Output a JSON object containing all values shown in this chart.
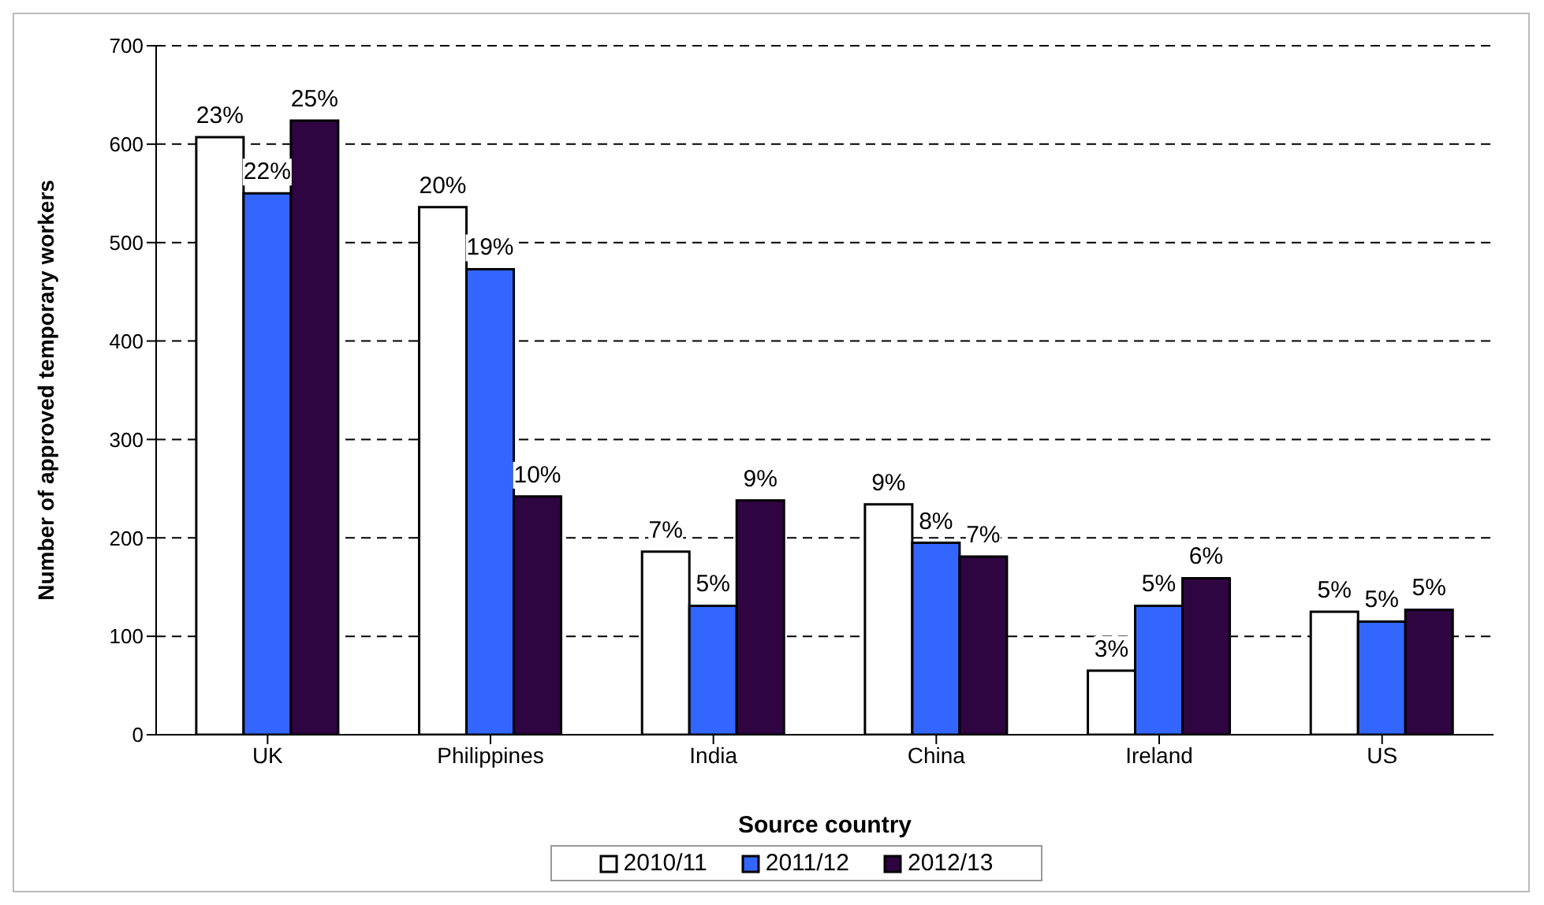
{
  "chart_data": {
    "type": "bar",
    "xlabel": "Source country",
    "ylabel": "Number of approved temporary workers",
    "categories": [
      "UK",
      "Philippines",
      "India",
      "China",
      "Ireland",
      "US"
    ],
    "series": [
      {
        "name": "2010/11",
        "color": "#ffffff",
        "values": [
          607,
          536,
          186,
          234,
          65,
          125
        ]
      },
      {
        "name": "2011/12",
        "color": "#3366ff",
        "values": [
          550,
          473,
          131,
          195,
          131,
          115
        ]
      },
      {
        "name": "2012/13",
        "color": "#2e0540",
        "values": [
          624,
          242,
          238,
          181,
          159,
          127
        ]
      }
    ],
    "annotations": [
      "23%",
      "22%",
      "25%",
      "20%",
      "19%",
      "10%",
      "7%",
      "5%",
      "9%",
      "9%",
      "8%",
      "7%",
      "3%",
      "5%",
      "6%",
      "5%",
      "5%",
      "5%"
    ],
    "ylim": [
      0,
      700
    ],
    "yticks": [
      0,
      100,
      200,
      300,
      400,
      500,
      600,
      700
    ],
    "grid": "y",
    "legend": "bottom"
  }
}
